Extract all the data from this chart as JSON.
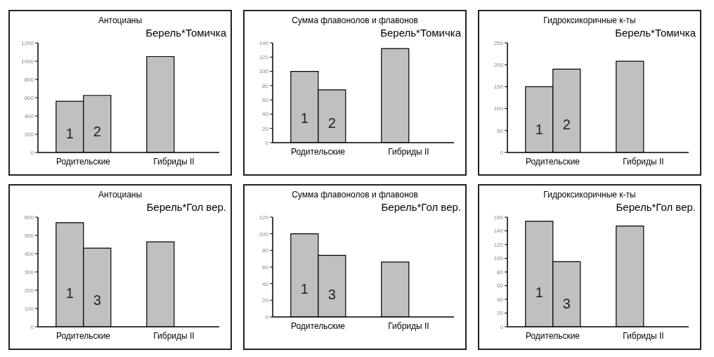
{
  "chart_data": [
    {
      "type": "bar",
      "title": "Антоцианы",
      "subtitle": "Берель*Томичка",
      "categories": [
        "Родительские",
        "Гибриды II"
      ],
      "series": [
        {
          "name": "1",
          "color": "#c0c0c0",
          "values": [
            560,
            1050
          ]
        },
        {
          "name": "2",
          "color": "#c0c0c0",
          "values": [
            625,
            null
          ]
        }
      ],
      "ylim": [
        0,
        1200
      ],
      "yticks": [
        0,
        200,
        400,
        600,
        800,
        1000,
        1200
      ]
    },
    {
      "type": "bar",
      "title": "Сумма флавонолов и флавонов",
      "subtitle": "Берель*Томичка",
      "categories": [
        "Родительские",
        "Гибриды II"
      ],
      "series": [
        {
          "name": "1",
          "color": "#c0c0c0",
          "values": [
            100,
            132
          ]
        },
        {
          "name": "2",
          "color": "#c0c0c0",
          "values": [
            74,
            null
          ]
        }
      ],
      "ylim": [
        0,
        140
      ],
      "yticks": [
        0,
        20,
        40,
        60,
        80,
        100,
        120,
        140
      ]
    },
    {
      "type": "bar",
      "title": "Гидроксикоричные к-ты",
      "subtitle": "Берель*Томичка",
      "categories": [
        "Родительские",
        "Гибриды II"
      ],
      "series": [
        {
          "name": "1",
          "color": "#c0c0c0",
          "values": [
            150,
            208
          ]
        },
        {
          "name": "2",
          "color": "#c0c0c0",
          "values": [
            190,
            null
          ]
        }
      ],
      "ylim": [
        0,
        250
      ],
      "yticks": [
        0,
        50,
        100,
        150,
        200,
        250
      ]
    },
    {
      "type": "bar",
      "title": "Антоцианы",
      "subtitle": "Берель*Гол вер.",
      "categories": [
        "Родительские",
        "Гибриды II"
      ],
      "series": [
        {
          "name": "1",
          "color": "#c0c0c0",
          "values": [
            570,
            465
          ]
        },
        {
          "name": "3",
          "color": "#c0c0c0",
          "values": [
            430,
            null
          ]
        }
      ],
      "ylim": [
        0,
        600
      ],
      "yticks": [
        0,
        100,
        200,
        300,
        400,
        500,
        600
      ]
    },
    {
      "type": "bar",
      "title": "Сумма флавонолов и флавонов",
      "subtitle": "Берель*Гол вер.",
      "categories": [
        "Родительские",
        "Гибриды II"
      ],
      "series": [
        {
          "name": "1",
          "color": "#c0c0c0",
          "values": [
            100,
            66
          ]
        },
        {
          "name": "3",
          "color": "#c0c0c0",
          "values": [
            74,
            null
          ]
        }
      ],
      "ylim": [
        0,
        120
      ],
      "yticks": [
        0,
        20,
        40,
        60,
        80,
        100,
        120
      ]
    },
    {
      "type": "bar",
      "title": "Гидроксикоричные к-ты",
      "subtitle": "Берель*Гол вер.",
      "categories": [
        "Родительские",
        "Гибриды II"
      ],
      "series": [
        {
          "name": "1",
          "color": "#c0c0c0",
          "values": [
            154,
            147
          ]
        },
        {
          "name": "3",
          "color": "#c0c0c0",
          "values": [
            95,
            null
          ]
        }
      ],
      "ylim": [
        0,
        160
      ],
      "yticks": [
        0,
        20,
        40,
        60,
        80,
        100,
        120,
        140,
        160
      ]
    }
  ]
}
